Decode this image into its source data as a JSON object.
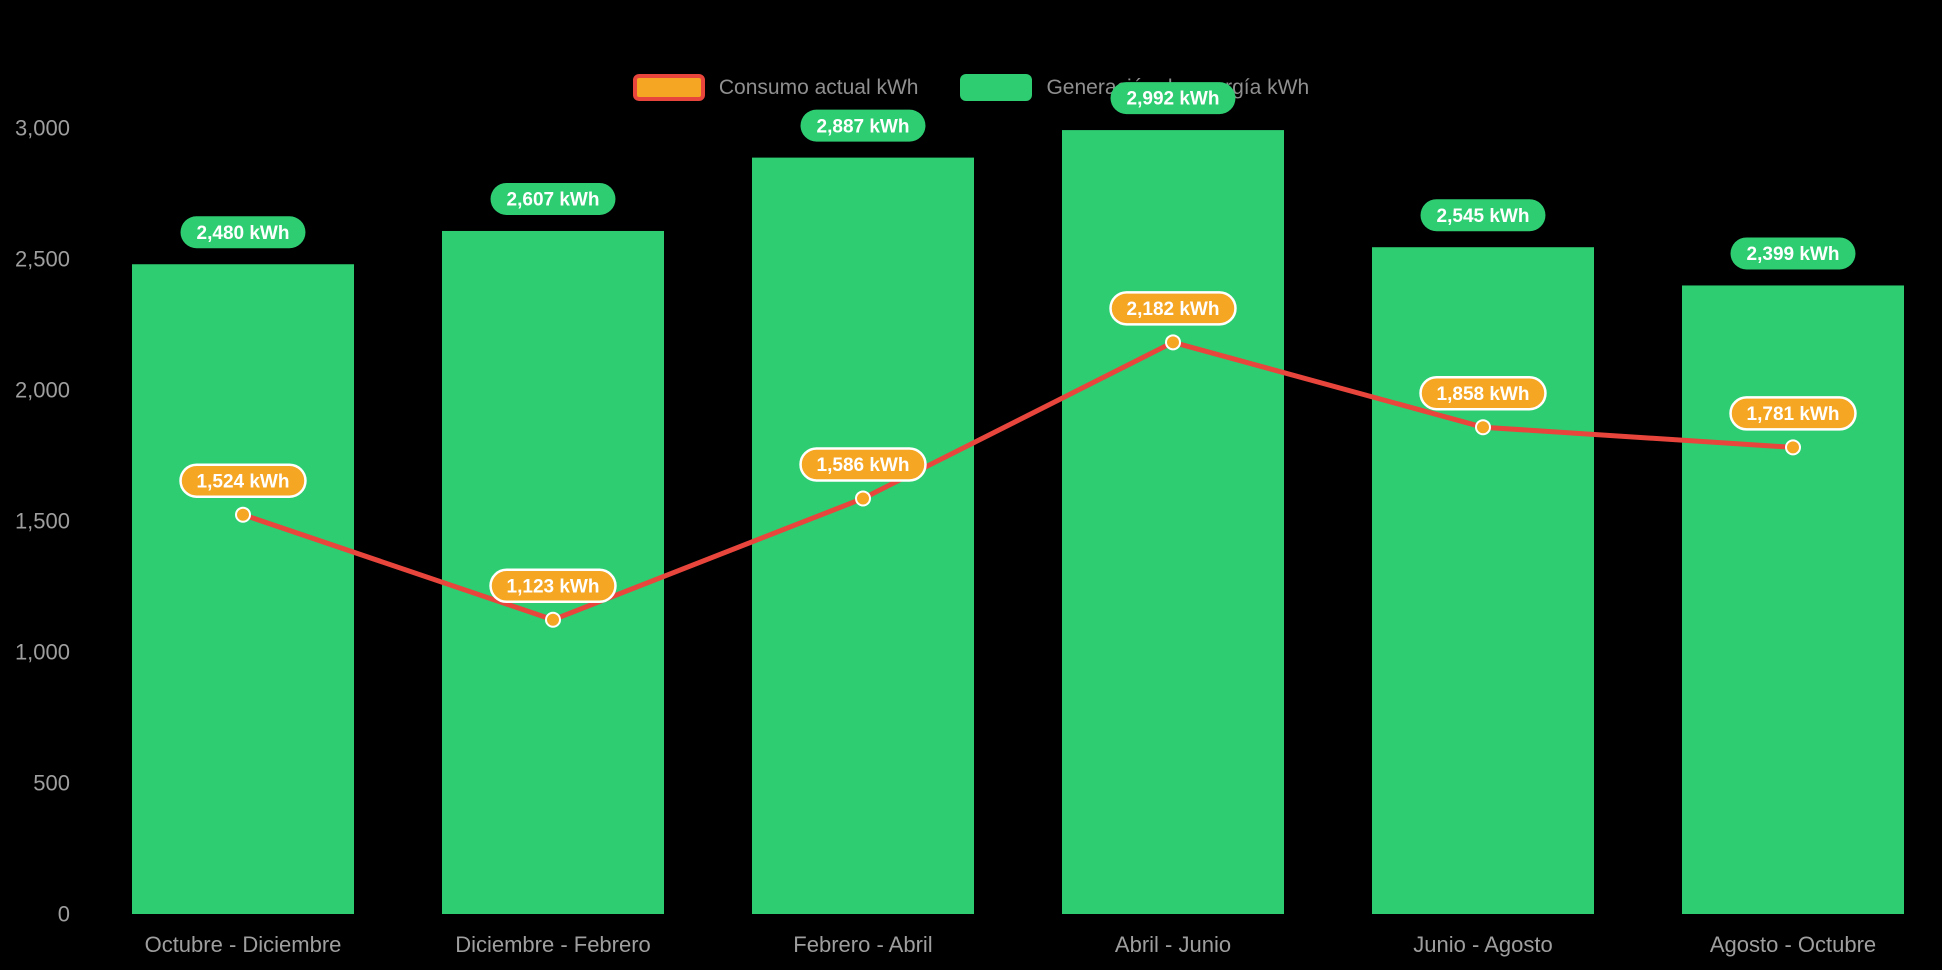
{
  "chart": {
    "background": "#000000",
    "legend_consumo": "Consumo actual kWh",
    "legend_generacion": "Generación de energía kWh"
  },
  "chart_data": {
    "type": "bar",
    "subtype": "bar-and-line-combo",
    "title": "",
    "categories": [
      "Octubre - Diciembre",
      "Diciembre - Febrero",
      "Febrero - Abril",
      "Abril - Junio",
      "Junio - Agosto",
      "Agosto - Octubre"
    ],
    "series": [
      {
        "name": "Generación de energía kWh",
        "type": "bar",
        "color": "#2ecd72",
        "values": [
          2480,
          2607,
          2887,
          2992,
          2545,
          2399
        ],
        "data_labels": [
          "2,480 kWh",
          "2,607 kWh",
          "2,887 kWh",
          "2,992 kWh",
          "2,545 kWh",
          "2,399 kWh"
        ],
        "label_fill": "#2ecd72",
        "label_text_color": "#ffffff"
      },
      {
        "name": "Consumo actual kWh",
        "type": "line",
        "color": "#e8453c",
        "marker_color": "#f5a623",
        "values": [
          1524,
          1123,
          1586,
          2182,
          1858,
          1781
        ],
        "data_labels": [
          "1,524 kWh",
          "1,123 kWh",
          "1,586 kWh",
          "2,182 kWh",
          "1,858 kWh",
          "1,781 kWh"
        ],
        "label_fill": "#f5a623",
        "label_stroke": "#ffffff",
        "label_text_color": "#ffffff"
      }
    ],
    "ylim": [
      0,
      3000
    ],
    "yticks": [
      0,
      500,
      1000,
      1500,
      2000,
      2500,
      3000
    ],
    "ytick_labels": [
      "0",
      "500",
      "1,000",
      "1,500",
      "2,000",
      "2,500",
      "3,000"
    ],
    "grid": false,
    "legend_position": "top",
    "axis_text_color": "#9e9e9e"
  }
}
